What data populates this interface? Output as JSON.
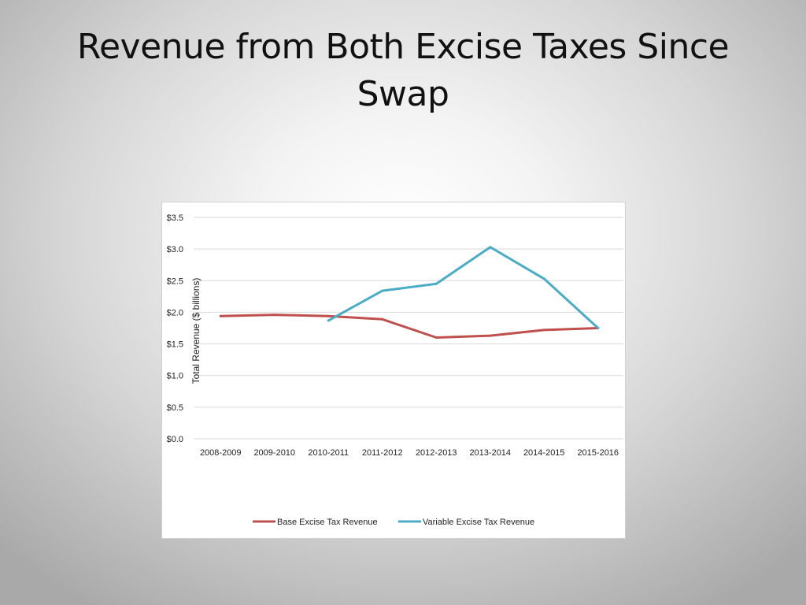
{
  "slide": {
    "title": "Revenue from Both Excise Taxes Since Swap"
  },
  "chart_data": {
    "type": "line",
    "categories": [
      "2008-2009",
      "2009-2010",
      "2010-2011",
      "2011-2012",
      "2012-2013",
      "2013-2014",
      "2014-2015",
      "2015-2016"
    ],
    "series": [
      {
        "name": "Base Excise Tax Revenue",
        "color": "#c0504d",
        "values": [
          1.94,
          1.96,
          1.94,
          1.89,
          1.6,
          1.63,
          1.72,
          1.75
        ]
      },
      {
        "name": "Variable Excise Tax Revenue",
        "color": "#4bacc6",
        "values": [
          null,
          null,
          1.87,
          2.34,
          2.45,
          3.03,
          2.53,
          1.75
        ]
      }
    ],
    "title": "",
    "xlabel": "",
    "ylabel": "Total Revenue ($ billions)",
    "ylim": [
      0,
      3.5
    ],
    "yticks": [
      "$0.0",
      "$0.5",
      "$1.0",
      "$1.5",
      "$2.0",
      "$2.5",
      "$3.0",
      "$3.5"
    ],
    "grid": "horizontal",
    "legend_position": "bottom"
  }
}
